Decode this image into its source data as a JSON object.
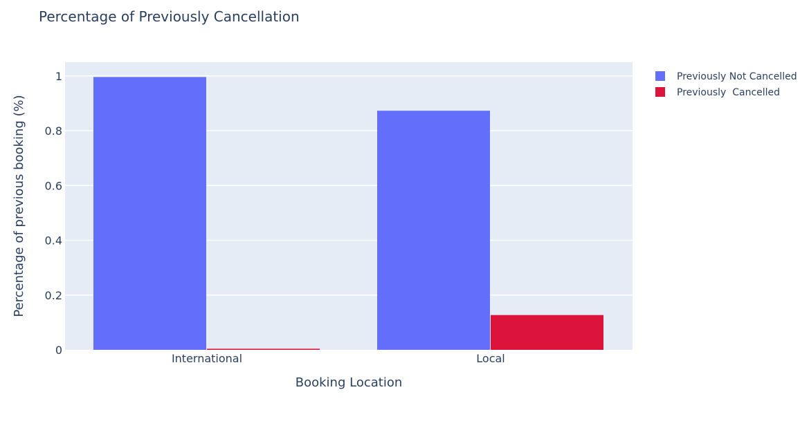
{
  "chart_data": {
    "type": "bar",
    "title": "Percentage of Previously Cancellation",
    "xlabel": "Booking Location",
    "ylabel": "Percentage of previous booking (%)",
    "categories": [
      "International",
      "Local"
    ],
    "series": [
      {
        "name": "Previously Not Cancelled",
        "values": [
          0.996,
          0.873
        ],
        "color": "#636efa"
      },
      {
        "name": "Previously  Cancelled",
        "values": [
          0.004,
          0.127
        ],
        "color": "#dc143c"
      }
    ],
    "ylim": [
      0,
      1.05
    ],
    "yticks": [
      "0",
      "0.2",
      "0.4",
      "0.6",
      "0.8",
      "1"
    ],
    "ytick_values": [
      0,
      0.2,
      0.4,
      0.6,
      0.8,
      1
    ],
    "grid": true,
    "legend": "top-right",
    "plot_background": "#e5ecf6"
  }
}
